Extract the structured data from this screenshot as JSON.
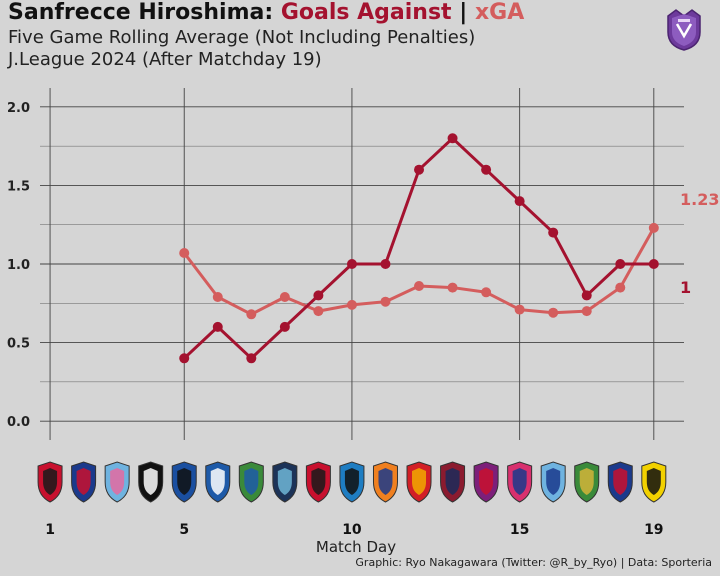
{
  "header": {
    "title_team": "Sanfrecce Hiroshima:",
    "title_goals": "Goals Against",
    "title_sep": "|",
    "title_xga": "xGA",
    "subtitle1": "Five Game Rolling Average (Not Including Penalties)",
    "subtitle2": "J.League 2024 (After Matchday 19)"
  },
  "footer": {
    "xlabel": "Match Day",
    "credit": "Graphic: Ryo Nakagawara (Twitter: @R_by_Ryo) | Data: Sporteria"
  },
  "colors": {
    "goals_against": "#a4122f",
    "xga": "#d45d5d",
    "background": "#d5d5d5",
    "grid": "#555555"
  },
  "icons": {
    "logo": "sanfrecce-crest-icon",
    "opponent_crests": [
      "urawa-crest-icon",
      "fc-tokyo-crest-icon",
      "sagan-tosu-crest-icon",
      "vissel-kobe-crest-icon",
      "gamba-osaka-crest-icon",
      "machida-zelvia-crest-icon",
      "shonan-bellmare-crest-icon",
      "avispa-fukuoka-crest-icon",
      "consadole-sapporo-crest-icon",
      "kawasaki-frontale-crest-icon",
      "albirex-niigata-crest-icon",
      "nagoya-grampus-crest-icon",
      "kashima-antlers-crest-icon",
      "kyoto-sanga-crest-icon",
      "cerezo-osaka-crest-icon",
      "jubilo-iwata-crest-icon",
      "tokyo-verdy-crest-icon",
      "yokohama-fmarinos-crest-icon",
      "kashiwa-reysol-crest-icon"
    ]
  },
  "chart_data": {
    "type": "line",
    "xlabel": "Match Day",
    "ylabel": "",
    "xlim": [
      0.7,
      19.9
    ],
    "ylim": [
      -0.12,
      2.12
    ],
    "x_ticks": [
      1,
      5,
      10,
      15,
      19
    ],
    "y_ticks": [
      0.0,
      0.5,
      1.0,
      1.5,
      2.0
    ],
    "y_tick_labels": [
      "0.0",
      "0.5",
      "1.0",
      "1.5",
      "2.0"
    ],
    "grid": true,
    "series": [
      {
        "name": "Goals Against",
        "color": "#a4122f",
        "x": [
          5,
          6,
          7,
          8,
          9,
          10,
          11,
          12,
          13,
          14,
          15,
          16,
          17,
          18,
          19
        ],
        "values": [
          0.4,
          0.6,
          0.4,
          0.6,
          0.8,
          1.0,
          1.0,
          1.6,
          1.8,
          1.6,
          1.4,
          1.2,
          0.8,
          1.0,
          1.0
        ],
        "end_label": "1"
      },
      {
        "name": "xGA",
        "color": "#d45d5d",
        "x": [
          5,
          6,
          7,
          8,
          9,
          10,
          11,
          12,
          13,
          14,
          15,
          16,
          17,
          18,
          19
        ],
        "values": [
          1.07,
          0.79,
          0.68,
          0.79,
          0.7,
          0.74,
          0.76,
          0.86,
          0.85,
          0.82,
          0.71,
          0.69,
          0.7,
          0.85,
          1.23
        ],
        "end_label": "1.23"
      }
    ]
  }
}
